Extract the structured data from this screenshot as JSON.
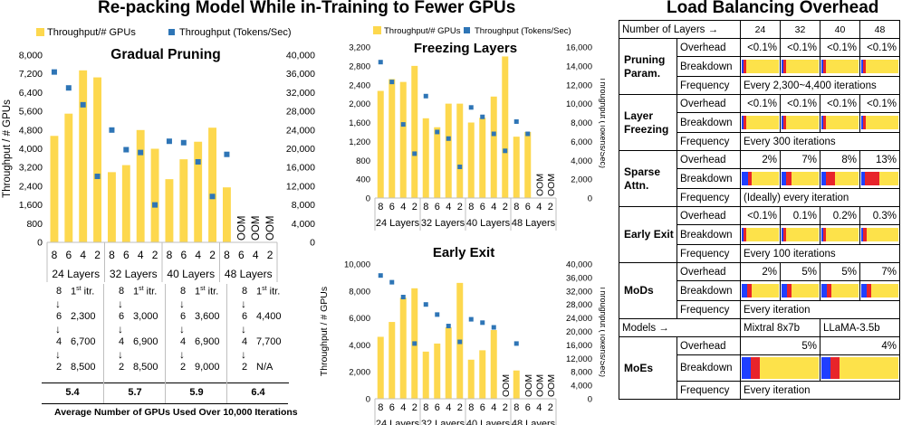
{
  "titles": {
    "left": "Re-packing Model While in-Training to Fewer GPUs",
    "right": "Load Balancing Overhead"
  },
  "colors": {
    "bar": "#FDD84E",
    "point": "#2E75B6",
    "blue": "#1F3FFF",
    "red": "#E8242A",
    "yellow": "#FDE24A"
  },
  "chart_data": [
    {
      "type": "bar",
      "title": "Gradual Pruning",
      "legend": [
        "Throughput/# GPUs",
        "Throughput (Tokens/Sec)"
      ],
      "ylabel": "Throughput / # GPUs",
      "ylim": [
        0,
        8000
      ],
      "y_ticks": [
        "0",
        "800",
        "1,600",
        "2,400",
        "3,200",
        "4,000",
        "4,800",
        "5,600",
        "6,400",
        "7,200",
        "8,000"
      ],
      "y2lim": [
        0,
        40000
      ],
      "y2_ticks": [
        "0",
        "4,000",
        "8,000",
        "12,000",
        "16,000",
        "20,000",
        "24,000",
        "28,000",
        "32,000",
        "36,000",
        "40,000"
      ],
      "categories": [
        "8",
        "6",
        "4",
        "2",
        "8",
        "6",
        "4",
        "2",
        "8",
        "6",
        "4",
        "2",
        "8",
        "6",
        "4",
        "2"
      ],
      "groups": [
        "24 Layers",
        "32 Layers",
        "40 Layers",
        "48 Layers"
      ],
      "series": [
        {
          "name": "Throughput/# GPUs",
          "values": [
            4550,
            5500,
            7350,
            7050,
            3000,
            3300,
            4800,
            4000,
            2700,
            3550,
            4300,
            4900,
            2350,
            null,
            null,
            null
          ]
        },
        {
          "name": "Throughput (Tokens/Sec)",
          "values": [
            36400,
            33000,
            29400,
            14100,
            24000,
            19800,
            19200,
            8000,
            21600,
            21300,
            17200,
            9800,
            18800,
            null,
            null,
            null
          ]
        }
      ],
      "oom_label": "OOM"
    },
    {
      "type": "bar",
      "title": "Freezing Layers",
      "legend": [
        "Throughput/# GPUs",
        "Throughput (Tokens/Sec)"
      ],
      "y2label": "Throughput (Tokens/Sec)",
      "ylim": [
        0,
        3200
      ],
      "y_ticks": [
        "0",
        "400",
        "800",
        "1,200",
        "1,600",
        "2,000",
        "2,400",
        "2,800",
        "3,200"
      ],
      "y2lim": [
        0,
        16000
      ],
      "y2_ticks": [
        "0",
        "2,000",
        "4,000",
        "6,000",
        "8,000",
        "10,000",
        "12,000",
        "14,000",
        "16,000"
      ],
      "categories": [
        "8",
        "6",
        "4",
        "2",
        "8",
        "6",
        "4",
        "2",
        "8",
        "6",
        "4",
        "2",
        "8",
        "6",
        "4",
        "2"
      ],
      "groups": [
        "24 Layers",
        "32 Layers",
        "40 Layers",
        "48 Layers"
      ],
      "series": [
        {
          "name": "Throughput/# GPUs",
          "values": [
            2270,
            2520,
            2460,
            2800,
            1690,
            1500,
            2000,
            2000,
            1600,
            1700,
            2150,
            3000,
            1300,
            1400,
            null,
            null
          ]
        },
        {
          "name": "Throughput (Tokens/Sec)",
          "values": [
            14400,
            12300,
            7800,
            4700,
            10800,
            7000,
            6300,
            3300,
            9600,
            8600,
            6800,
            5000,
            8100,
            6800,
            null,
            null
          ]
        }
      ],
      "oom_label": "OOM"
    },
    {
      "type": "bar",
      "title": "Early Exit",
      "ylabel": "Throughput / # GPUs",
      "y2label": "Throughput (Tokens/Sec)",
      "ylim": [
        0,
        10000
      ],
      "y_ticks": [
        "0",
        "2,000",
        "4,000",
        "6,000",
        "8,000",
        "10,000"
      ],
      "y2lim": [
        0,
        40000
      ],
      "y2_ticks": [
        "0",
        "4,000",
        "8,000",
        "12,000",
        "16,000",
        "20,000",
        "24,000",
        "28,000",
        "32,000",
        "36,000",
        "40,000"
      ],
      "categories": [
        "8",
        "6",
        "4",
        "2",
        "8",
        "6",
        "4",
        "2",
        "8",
        "6",
        "4",
        "2",
        "8",
        "6",
        "4",
        "2"
      ],
      "groups": [
        "24 Layers",
        "32 Layers",
        "40 Layers",
        "48 Layers"
      ],
      "series": [
        {
          "name": "Throughput/# GPUs",
          "values": [
            4600,
            5700,
            7500,
            8200,
            3500,
            4100,
            5300,
            8600,
            2900,
            3600,
            5100,
            null,
            2100,
            null,
            null,
            null
          ]
        },
        {
          "name": "Throughput (Tokens/Sec)",
          "values": [
            36600,
            34600,
            30200,
            16400,
            28000,
            25000,
            21600,
            16900,
            23600,
            22600,
            21200,
            null,
            16400,
            null,
            null,
            null
          ]
        }
      ],
      "oom_label": "OOM"
    }
  ],
  "gpu_table": {
    "first_iter": "1st itr.",
    "arrow": "↓",
    "columns": [
      {
        "rows": [
          [
            "8",
            "1st itr."
          ],
          [
            "6",
            "2,300"
          ],
          [
            "4",
            "6,700"
          ],
          [
            "2",
            "8,500"
          ]
        ],
        "avg": "5.4"
      },
      {
        "rows": [
          [
            "8",
            "1st itr."
          ],
          [
            "6",
            "3,000"
          ],
          [
            "4",
            "6,900"
          ],
          [
            "2",
            "8,500"
          ]
        ],
        "avg": "5.7"
      },
      {
        "rows": [
          [
            "8",
            "1st itr."
          ],
          [
            "6",
            "3,600"
          ],
          [
            "4",
            "6,900"
          ],
          [
            "2",
            "9,000"
          ]
        ],
        "avg": "5.9"
      },
      {
        "rows": [
          [
            "8",
            "1st itr."
          ],
          [
            "6",
            "4,400"
          ],
          [
            "4",
            "7,700"
          ],
          [
            "2",
            "N/A"
          ]
        ],
        "avg": "6.4"
      }
    ],
    "caption": "Average Number of GPUs Used Over 10,000 Iterations"
  },
  "lb_table": {
    "header_label": "Number of Layers →",
    "layers": [
      "24",
      "32",
      "40",
      "48"
    ],
    "row_labels": {
      "overhead": "Overhead",
      "breakdown": "Breakdown",
      "frequency": "Frequency"
    },
    "groups": [
      {
        "name": "Pruning Param.",
        "overhead": [
          "<0.1%",
          "<0.1%",
          "<0.1%",
          "<0.1%"
        ],
        "frequency": "Every 2,300~4,400 iterations"
      },
      {
        "name": "Layer Freezing",
        "overhead": [
          "<0.1%",
          "<0.1%",
          "<0.1%",
          "<0.1%"
        ],
        "frequency": "Every 300 iterations"
      },
      {
        "name": "Sparse Attn.",
        "overhead": [
          "2%",
          "7%",
          "8%",
          "13%"
        ],
        "frequency": "(Ideally) every iteration"
      },
      {
        "name": "Early Exit",
        "overhead": [
          "<0.1%",
          "0.1%",
          "0.2%",
          "0.3%"
        ],
        "frequency": "Every 100 iterations"
      },
      {
        "name": "MoDs",
        "overhead": [
          "2%",
          "5%",
          "5%",
          "7%"
        ],
        "frequency": "Every iteration"
      }
    ],
    "models_label": "Models →",
    "models": [
      "Mixtral 8x7b",
      "LLaMA-3.5b"
    ],
    "moe": {
      "name": "MoEs",
      "overhead": [
        "5%",
        "4%"
      ],
      "frequency": "Every iteration"
    }
  }
}
